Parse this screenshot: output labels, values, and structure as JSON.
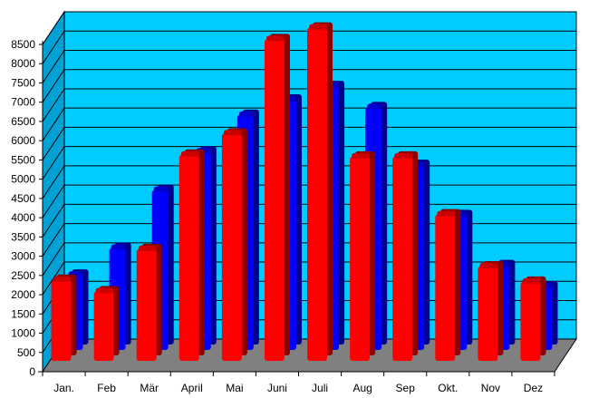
{
  "chart_data": {
    "type": "bar",
    "title": "",
    "xlabel": "",
    "ylabel": "",
    "categories": [
      "Jan.",
      "Feb",
      "Mär",
      "April",
      "Mai",
      "Juni",
      "Juli",
      "Aug",
      "Sep",
      "Okt.",
      "Nov",
      "Dez"
    ],
    "series": [
      {
        "values": [
          2100,
          1800,
          2900,
          5350,
          5900,
          8350,
          8650,
          5300,
          5300,
          3800,
          2450,
          2050
        ]
      },
      {
        "values": [
          1950,
          2650,
          4150,
          5150,
          6100,
          6500,
          6850,
          6300,
          4800,
          3500,
          2200,
          1650
        ]
      }
    ],
    "ylim": [
      0,
      8500
    ],
    "yticks": [
      0,
      500,
      1000,
      1500,
      2000,
      2500,
      3000,
      3500,
      4000,
      4500,
      5000,
      5500,
      6000,
      6500,
      7000,
      7500,
      8000,
      8500
    ],
    "grid": true,
    "legend": "none",
    "colors": {
      "wall": "#00ccff",
      "side_wall": "#00a2d6",
      "floor": "#808080",
      "front_series": "#ff0000",
      "back_series": "#0000ff",
      "grid": "#000000"
    }
  }
}
